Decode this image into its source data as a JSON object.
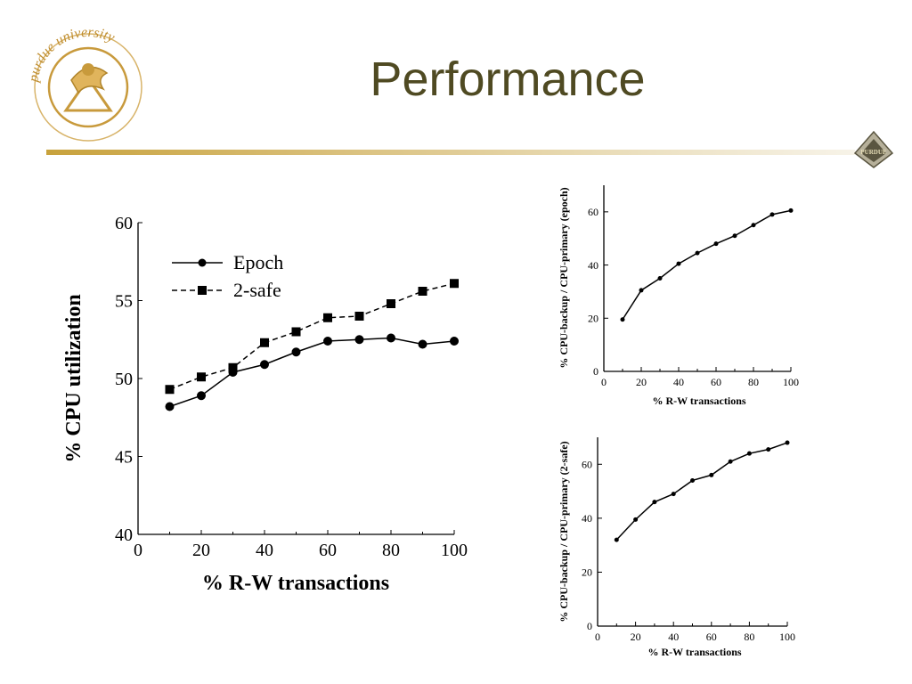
{
  "slide": {
    "title": "Performance"
  },
  "logos": {
    "seal_text": "purdue university",
    "corner_text": "PURDUE"
  },
  "colors": {
    "title": "#4f4a22",
    "rule": "#c8a23c",
    "seal": "#c89a3c",
    "ink": "#000000"
  },
  "chart_data": [
    {
      "id": "main",
      "type": "line",
      "xlabel": "%  R-W transactions",
      "ylabel": "%  CPU utilization",
      "xlim": [
        0,
        100
      ],
      "ylim": [
        40,
        60
      ],
      "xticks": [
        0,
        20,
        40,
        60,
        80,
        100
      ],
      "yticks": [
        40,
        45,
        50,
        55,
        60
      ],
      "x": [
        10,
        20,
        30,
        40,
        50,
        60,
        70,
        80,
        90,
        100
      ],
      "legend": "top-left",
      "series": [
        {
          "name": "Epoch",
          "marker": "circle",
          "dash": "solid",
          "values": [
            48.2,
            48.9,
            50.4,
            50.9,
            51.7,
            52.4,
            52.5,
            52.6,
            52.2,
            52.4
          ]
        },
        {
          "name": "2-safe",
          "marker": "square",
          "dash": "dashed",
          "values": [
            49.3,
            50.1,
            50.7,
            52.3,
            53.0,
            53.9,
            54.0,
            54.8,
            55.6,
            56.1
          ]
        }
      ]
    },
    {
      "id": "epoch",
      "type": "line",
      "xlabel": "%  R-W transactions",
      "ylabel": "%  CPU-backup / CPU-primary (epoch)",
      "xlim": [
        0,
        100
      ],
      "ylim": [
        0,
        70
      ],
      "xticks": [
        0,
        20,
        40,
        60,
        80,
        100
      ],
      "yticks": [
        0,
        20,
        40,
        60
      ],
      "x": [
        10,
        20,
        30,
        40,
        50,
        60,
        70,
        80,
        90,
        100
      ],
      "series": [
        {
          "marker": "dot",
          "values": [
            19.5,
            30.5,
            35.0,
            40.5,
            44.5,
            48.0,
            51.0,
            55.0,
            59.0,
            60.5
          ]
        }
      ]
    },
    {
      "id": "safe",
      "type": "line",
      "xlabel": "%  R-W transactions",
      "ylabel": "%  CPU-backup / CPU-primary (2-safe)",
      "xlim": [
        0,
        100
      ],
      "ylim": [
        0,
        70
      ],
      "xticks": [
        0,
        20,
        40,
        60,
        80,
        100
      ],
      "yticks": [
        0,
        20,
        40,
        60
      ],
      "x": [
        10,
        20,
        30,
        40,
        50,
        60,
        70,
        80,
        90,
        100
      ],
      "series": [
        {
          "marker": "dot",
          "values": [
            32.0,
            39.5,
            46.0,
            49.0,
            54.0,
            56.0,
            61.0,
            64.0,
            65.5,
            68.0
          ]
        }
      ]
    }
  ]
}
